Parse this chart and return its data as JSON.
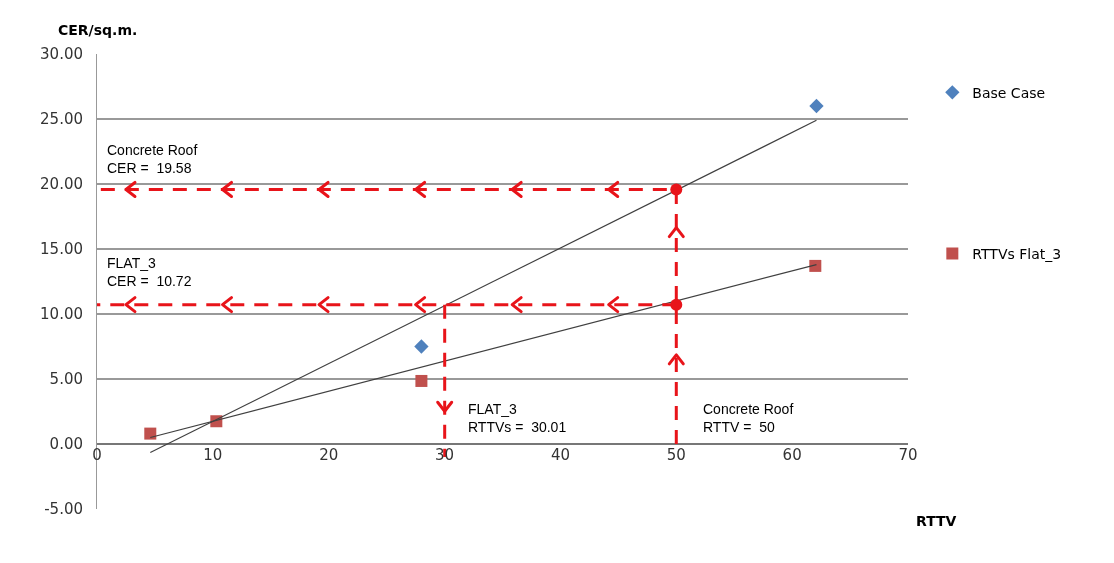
{
  "chart_data": {
    "type": "scatter",
    "xlabel": "RTTV",
    "ylabel": "CER/sq.m.",
    "xlim": [
      0,
      70
    ],
    "xticks": [
      0,
      10,
      20,
      30,
      40,
      50,
      60,
      70
    ],
    "ylim": [
      -5,
      30
    ],
    "yticks": [
      {
        "value": -5,
        "label": "-5.00"
      },
      {
        "value": 0,
        "label": "0.00"
      },
      {
        "value": 5,
        "label": "5.00"
      },
      {
        "value": 10,
        "label": "10.00"
      },
      {
        "value": 15,
        "label": "15.00"
      },
      {
        "value": 20,
        "label": "20.00"
      },
      {
        "value": 25,
        "label": "25.00"
      },
      {
        "value": 30,
        "label": "30.00"
      }
    ],
    "grid": "y",
    "legend": "right",
    "series": [
      {
        "name": "Base Case",
        "marker": "diamond",
        "color": "#4f81bd",
        "x": [
          28.0,
          62.1
        ],
        "values": [
          7.5,
          26.0
        ]
      },
      {
        "name": "RTTVs Flat_3",
        "marker": "square",
        "color": "#c0504d",
        "x": [
          4.6,
          10.3,
          28.0,
          62.0
        ],
        "values": [
          0.8,
          1.75,
          4.85,
          13.7
        ]
      },
      {
        "type": "line",
        "marker": "none",
        "color": "#404040",
        "x": [
          4.6,
          62.1
        ],
        "values": [
          -0.66,
          24.9
        ]
      },
      {
        "type": "line",
        "marker": "none",
        "color": "#404040",
        "x": [
          4.6,
          62.1
        ],
        "values": [
          0.5,
          13.8
        ]
      },
      {
        "type": "line",
        "marker": "none",
        "line_style": "dashed",
        "color": "#e8141a",
        "x": [
          50,
          50,
          0
        ],
        "values": [
          0,
          19.58,
          19.58
        ]
      },
      {
        "type": "line",
        "marker": "none",
        "line_style": "dashed",
        "color": "#e8141a",
        "x": [
          50,
          0,
          null,
          30.01,
          30.01
        ],
        "values": [
          10.72,
          10.72,
          null,
          10.72,
          -1
        ]
      },
      {
        "marker": "circle",
        "color": "#e8141a",
        "x": [
          50,
          50
        ],
        "values": [
          19.58,
          10.72
        ]
      }
    ],
    "annotations": [
      "Concrete Roof\nCER =  19.58",
      "FLAT_3\nCER =  10.72",
      "FLAT_3\nRTTVs =  30.01",
      "Concrete Roof\nRTTV =  50"
    ]
  }
}
